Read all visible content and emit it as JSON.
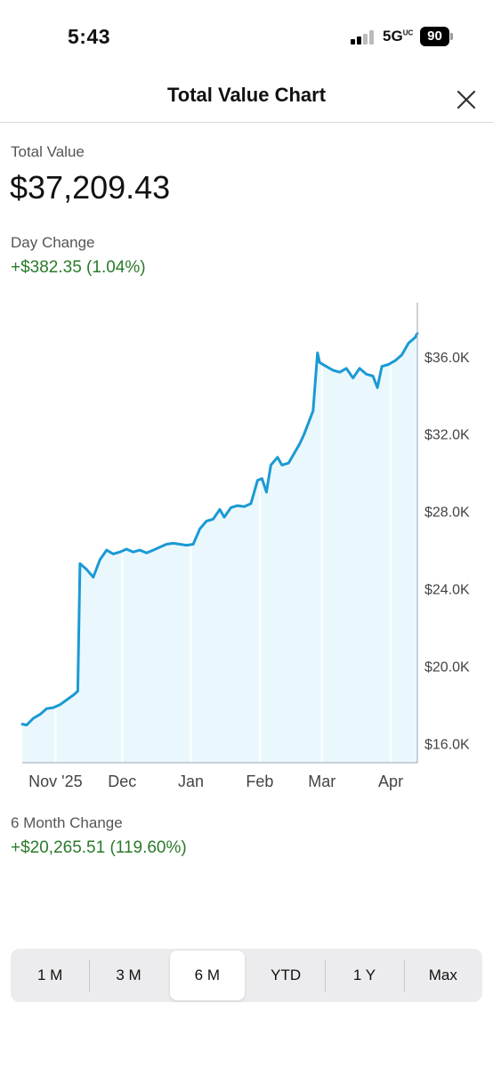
{
  "status_bar": {
    "time": "5:43",
    "network": "5G",
    "network_superscript": "UC",
    "battery": "90"
  },
  "header": {
    "title": "Total Value Chart",
    "close_icon": "close-icon"
  },
  "summary": {
    "total_label": "Total Value",
    "total_value": "$37,209.43",
    "day_change_label": "Day Change",
    "day_change_value": "+$382.35 (1.04%)",
    "period_change_label": "6 Month Change",
    "period_change_value": "+$20,265.51 (119.60%)"
  },
  "colors": {
    "line": "#1a9ad4",
    "fill": "#eaf8fd",
    "gain": "#2a7a2a"
  },
  "chart_data": {
    "type": "area",
    "x_ticks": [
      {
        "date": "2025-11-01",
        "label": "Nov '25"
      },
      {
        "date": "2025-12-01",
        "label": "Dec"
      },
      {
        "date": "2026-01-01",
        "label": "Jan"
      },
      {
        "date": "2026-02-01",
        "label": "Feb"
      },
      {
        "date": "2026-03-01",
        "label": "Mar"
      },
      {
        "date": "2026-04-01",
        "label": "Apr"
      }
    ],
    "x_range": [
      "2025-10-17",
      "2026-04-13"
    ],
    "y_ticks": [
      {
        "value": 16000,
        "label": "$16.0K"
      },
      {
        "value": 20000,
        "label": "$20.0K"
      },
      {
        "value": 24000,
        "label": "$24.0K"
      },
      {
        "value": 28000,
        "label": "$28.0K"
      },
      {
        "value": 32000,
        "label": "$32.0K"
      },
      {
        "value": 36000,
        "label": "$36.0K"
      }
    ],
    "ylim": [
      15000,
      38800
    ],
    "y_axis_position": "right",
    "vertical_gridlines": true,
    "points": [
      [
        "2025-10-17",
        17000
      ],
      [
        "2025-10-19",
        16950
      ],
      [
        "2025-10-22",
        17300
      ],
      [
        "2025-10-25",
        17500
      ],
      [
        "2025-10-28",
        17800
      ],
      [
        "2025-10-31",
        17850
      ],
      [
        "2025-11-03",
        18000
      ],
      [
        "2025-11-06",
        18250
      ],
      [
        "2025-11-09",
        18500
      ],
      [
        "2025-11-11",
        18700
      ],
      [
        "2025-11-12",
        25300
      ],
      [
        "2025-11-15",
        25000
      ],
      [
        "2025-11-18",
        24600
      ],
      [
        "2025-11-21",
        25500
      ],
      [
        "2025-11-24",
        26000
      ],
      [
        "2025-11-27",
        25800
      ],
      [
        "2025-11-30",
        25900
      ],
      [
        "2025-12-03",
        26050
      ],
      [
        "2025-12-06",
        25900
      ],
      [
        "2025-12-09",
        26000
      ],
      [
        "2025-12-12",
        25850
      ],
      [
        "2025-12-15",
        26000
      ],
      [
        "2025-12-18",
        26150
      ],
      [
        "2025-12-21",
        26300
      ],
      [
        "2025-12-24",
        26350
      ],
      [
        "2025-12-27",
        26300
      ],
      [
        "2025-12-30",
        26250
      ],
      [
        "2026-01-02",
        26300
      ],
      [
        "2026-01-05",
        27100
      ],
      [
        "2026-01-08",
        27500
      ],
      [
        "2026-01-11",
        27600
      ],
      [
        "2026-01-14",
        28100
      ],
      [
        "2026-01-16",
        27700
      ],
      [
        "2026-01-19",
        28200
      ],
      [
        "2026-01-22",
        28300
      ],
      [
        "2026-01-25",
        28250
      ],
      [
        "2026-01-28",
        28400
      ],
      [
        "2026-01-31",
        29600
      ],
      [
        "2026-02-02",
        29700
      ],
      [
        "2026-02-04",
        29000
      ],
      [
        "2026-02-06",
        30400
      ],
      [
        "2026-02-09",
        30800
      ],
      [
        "2026-02-11",
        30400
      ],
      [
        "2026-02-14",
        30500
      ],
      [
        "2026-02-17",
        31100
      ],
      [
        "2026-02-19",
        31500
      ],
      [
        "2026-02-21",
        32000
      ],
      [
        "2026-02-23",
        32600
      ],
      [
        "2026-02-25",
        33200
      ],
      [
        "2026-02-27",
        36200
      ],
      [
        "2026-02-28",
        35700
      ],
      [
        "2026-03-03",
        35500
      ],
      [
        "2026-03-06",
        35300
      ],
      [
        "2026-03-09",
        35200
      ],
      [
        "2026-03-12",
        35400
      ],
      [
        "2026-03-15",
        34900
      ],
      [
        "2026-03-18",
        35400
      ],
      [
        "2026-03-21",
        35100
      ],
      [
        "2026-03-24",
        35000
      ],
      [
        "2026-03-26",
        34400
      ],
      [
        "2026-03-28",
        35500
      ],
      [
        "2026-03-31",
        35600
      ],
      [
        "2026-04-03",
        35800
      ],
      [
        "2026-04-06",
        36100
      ],
      [
        "2026-04-09",
        36700
      ],
      [
        "2026-04-12",
        37000
      ],
      [
        "2026-04-13",
        37209
      ]
    ]
  },
  "range_selector": {
    "items": [
      "1 M",
      "3 M",
      "6 M",
      "YTD",
      "1 Y",
      "Max"
    ],
    "selected_index": 2
  }
}
